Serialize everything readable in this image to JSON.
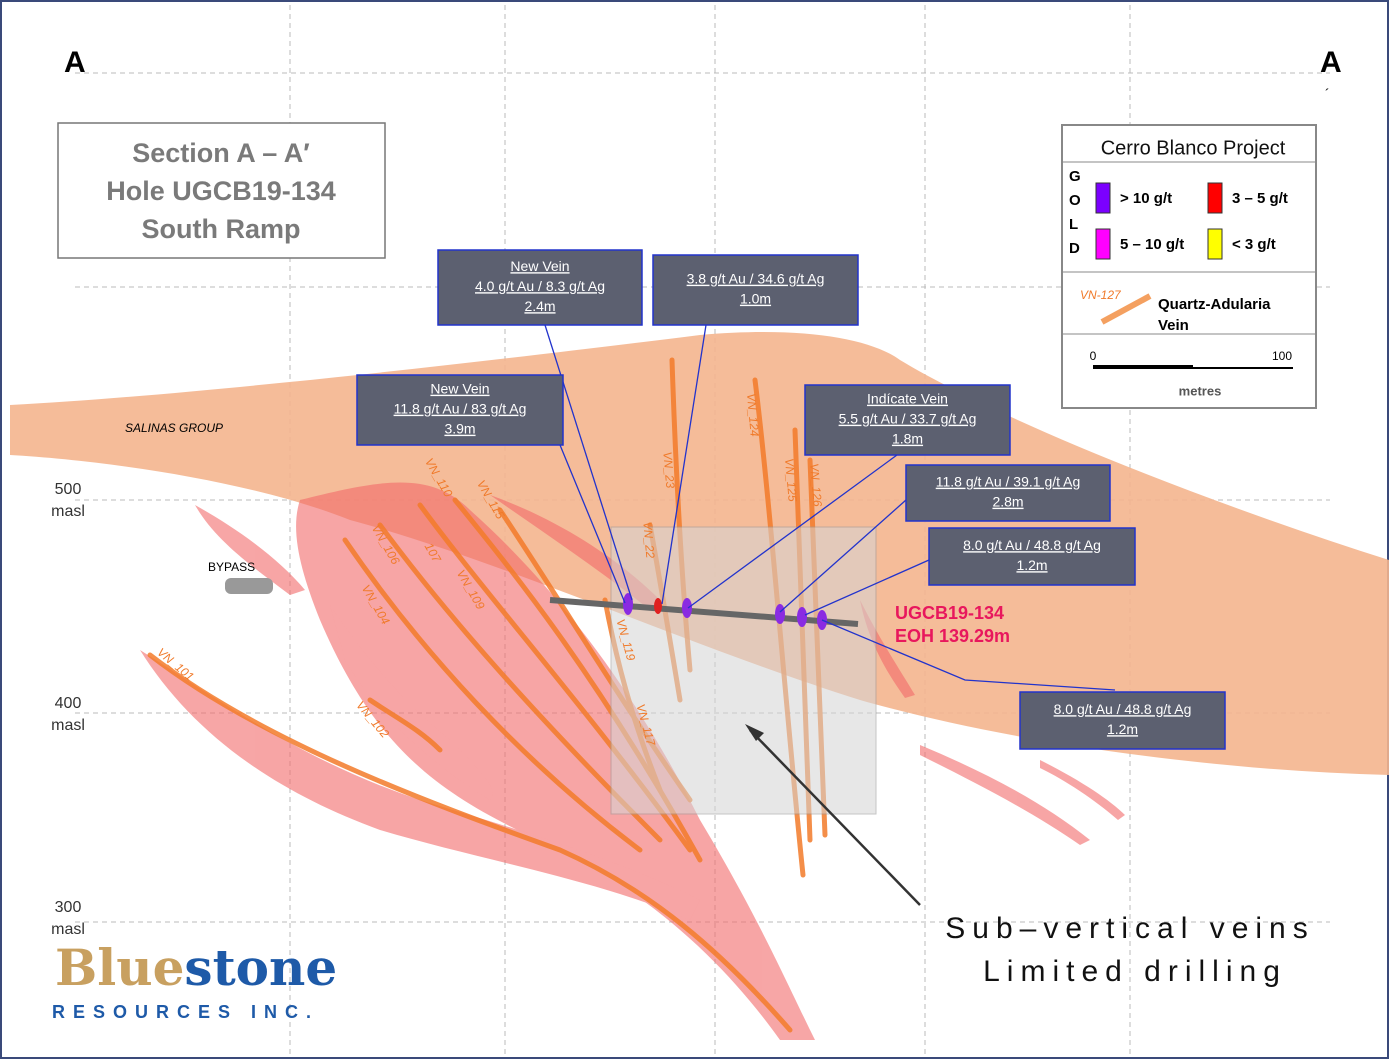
{
  "section_labels": {
    "left": "A",
    "right": "A",
    "right_prime": "´"
  },
  "title_box": [
    "Section A – A′",
    "Hole UGCB19-134",
    "South Ramp"
  ],
  "legend": {
    "title": "Cerro Blanco Project",
    "side_label": [
      "G",
      "O",
      "L",
      "D"
    ],
    "grades": [
      {
        "label": "> 10 g/t",
        "color": "#7b00ff"
      },
      {
        "label": "3 – 5 g/t",
        "color": "#ff0000"
      },
      {
        "label": "5 – 10 g/t",
        "color": "#ff00ff"
      },
      {
        "label": "< 3 g/t",
        "color": "#ffff00"
      }
    ],
    "vein": {
      "sample": "VN-127",
      "label": [
        "Quartz-Adularia",
        "Vein"
      ]
    },
    "scale": {
      "start": "0",
      "end": "100",
      "unit": "metres"
    }
  },
  "elevations": [
    {
      "value": "500",
      "unit": "masl"
    },
    {
      "value": "400",
      "unit": "masl"
    },
    {
      "value": "300",
      "unit": "masl"
    }
  ],
  "units": [
    "SALINAS GROUP",
    "BYPASS"
  ],
  "veins": [
    "VN_110",
    "VN_115",
    "VN_106",
    "107",
    "VN_109",
    "VN_104",
    "VN_101",
    "VN_102",
    "VN_119",
    "VN_117",
    "VN_22",
    "VN_23",
    "VN_124",
    "VN_125",
    "VN_126"
  ],
  "hole": {
    "name": "UGCB19-134",
    "eoh": "EOH 139.29m"
  },
  "intercepts": [
    {
      "lines": [
        "New Vein",
        "4.0 g/t Au / 8.3 g/t Ag",
        "2.4m"
      ]
    },
    {
      "lines": [
        "3.8 g/t Au / 34.6 g/t Ag",
        "1.0m"
      ]
    },
    {
      "lines": [
        "New Vein",
        "11.8 g/t Au / 83 g/t Ag",
        "3.9m"
      ]
    },
    {
      "lines": [
        "Indícate Vein",
        "5.5 g/t Au / 33.7 g/t Ag",
        "1.8m"
      ]
    },
    {
      "lines": [
        "11.8 g/t Au / 39.1 g/t Ag",
        "2.8m"
      ]
    },
    {
      "lines": [
        "8.0 g/t Au / 48.8 g/t Ag",
        "1.2m"
      ]
    },
    {
      "lines": [
        "8.0 g/t Au / 48.8 g/t Ag",
        "1.2m"
      ]
    }
  ],
  "annotation": [
    "Sub–vertical veins",
    "Limited drilling"
  ],
  "logo": {
    "blue": "Blue",
    "stone": "stone",
    "tag": "RESOURCES INC."
  }
}
